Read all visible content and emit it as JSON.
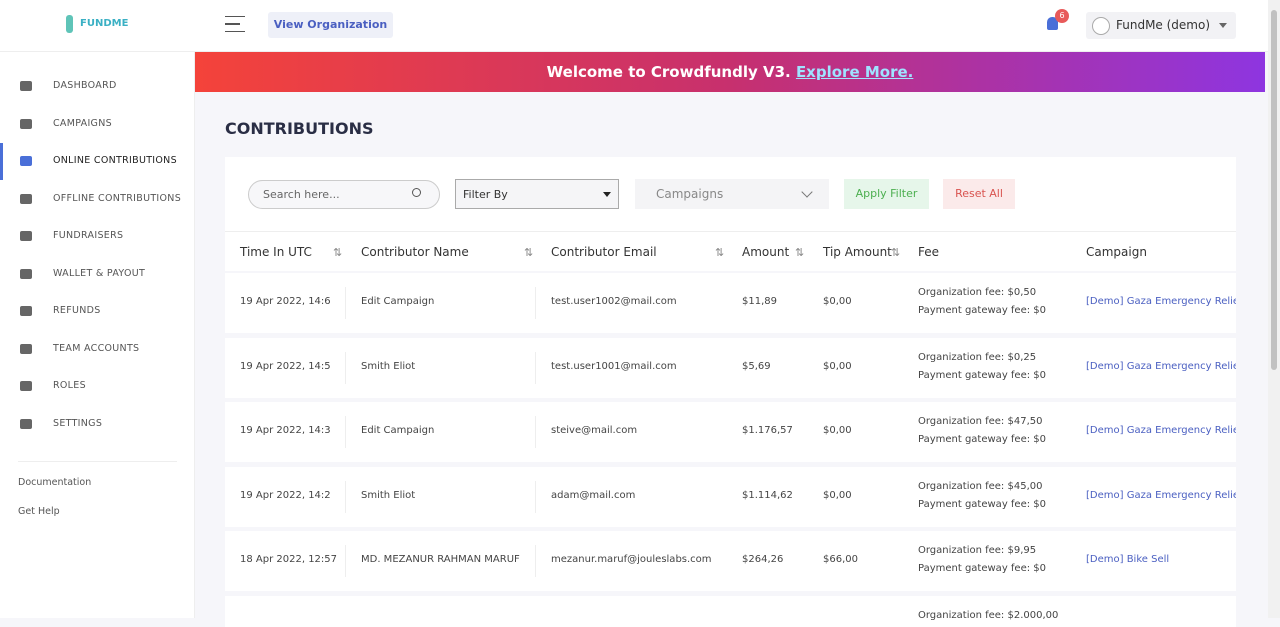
{
  "header": {
    "logo": "FUNDME",
    "view_org": "View Organization",
    "notifications": "6",
    "account": "FundMe (demo)"
  },
  "banner": {
    "text": "Welcome to Crowdfundly V3.",
    "link": "Explore More."
  },
  "sidebar": {
    "items": [
      "DASHBOARD",
      "CAMPAIGNS",
      "ONLINE CONTRIBUTIONS",
      "OFFLINE CONTRIBUTIONS",
      "FUNDRAISERS",
      "WALLET & PAYOUT",
      "REFUNDS",
      "TEAM ACCOUNTS",
      "ROLES",
      "SETTINGS"
    ],
    "active": 2,
    "links": [
      "Documentation",
      "Get Help"
    ]
  },
  "page": {
    "title": "CONTRIBUTIONS"
  },
  "filters": {
    "search": "Search here...",
    "filter_by": "Filter By",
    "campaigns": "Campaigns",
    "apply": "Apply Filter",
    "reset": "Reset All"
  },
  "table": {
    "headers": [
      "Time In UTC",
      "Contributor Name",
      "Contributor Email",
      "Amount",
      "Tip Amount",
      "Fee",
      "Campaign"
    ],
    "rows": [
      {
        "time": "19 Apr 2022, 14:6",
        "name": "Edit Campaign",
        "email": "test.user1002@mail.com",
        "amount": "$11,89",
        "tip": "$0,00",
        "org_fee": "Organization fee: $0,50",
        "gateway_fee": "Payment gateway fee: $0",
        "campaign": "[Demo] Gaza Emergency Relie"
      },
      {
        "time": "19 Apr 2022, 14:5",
        "name": "Smith Eliot",
        "email": "test.user1001@mail.com",
        "amount": "$5,69",
        "tip": "$0,00",
        "org_fee": "Organization fee: $0,25",
        "gateway_fee": "Payment gateway fee: $0",
        "campaign": "[Demo] Gaza Emergency Relie"
      },
      {
        "time": "19 Apr 2022, 14:3",
        "name": "Edit Campaign",
        "email": "steive@mail.com",
        "amount": "$1.176,57",
        "tip": "$0,00",
        "org_fee": "Organization fee: $47,50",
        "gateway_fee": "Payment gateway fee: $0",
        "campaign": "[Demo] Gaza Emergency Relie"
      },
      {
        "time": "19 Apr 2022, 14:2",
        "name": "Smith Eliot",
        "email": "adam@mail.com",
        "amount": "$1.114,62",
        "tip": "$0,00",
        "org_fee": "Organization fee: $45,00",
        "gateway_fee": "Payment gateway fee: $0",
        "campaign": "[Demo] Gaza Emergency Relie"
      },
      {
        "time": "18 Apr 2022, 12:57",
        "name": "MD. MEZANUR RAHMAN MARUF",
        "email": "mezanur.maruf@jouleslabs.com",
        "amount": "$264,26",
        "tip": "$66,00",
        "org_fee": "Organization fee: $9,95",
        "gateway_fee": "Payment gateway fee: $0",
        "campaign": "[Demo] Bike Sell"
      },
      {
        "org_fee": "Organization fee: $2.000,00"
      }
    ]
  }
}
